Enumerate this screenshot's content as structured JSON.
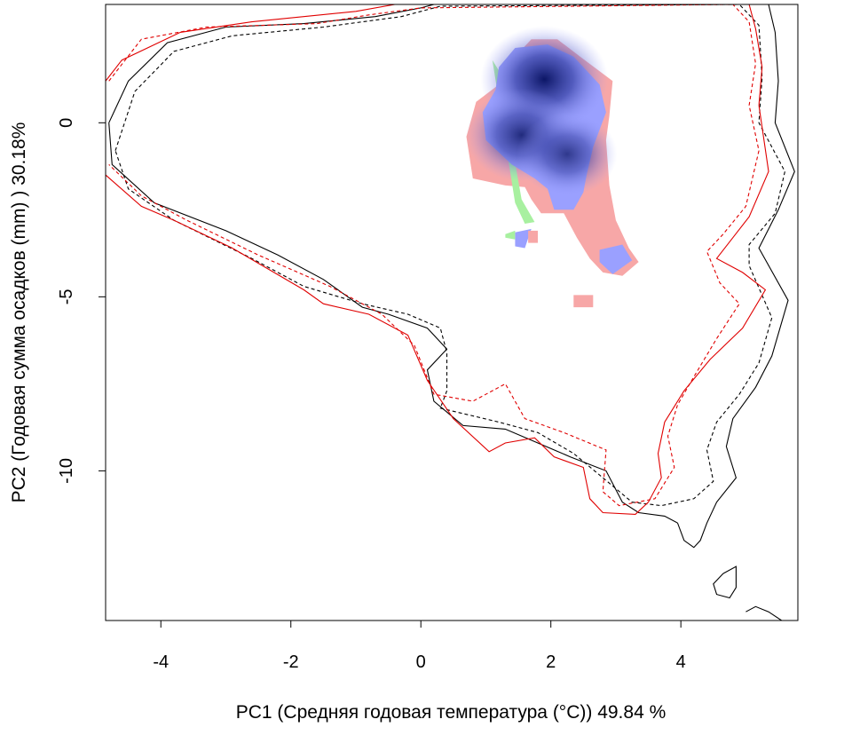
{
  "chart_data": {
    "type": "contour-density",
    "xlabel": "PC1 (Средняя годовая температура (°C)) 49.84 %",
    "ylabel": "PC2 (Годовая сумма осадков  (mm) ) 30.18%",
    "xlim": [
      -4.85,
      5.8
    ],
    "ylim": [
      -14.3,
      3.4
    ],
    "xticks": [
      -4,
      -2,
      0,
      2,
      4
    ],
    "yticks": [
      0,
      -5,
      -10
    ],
    "xtick_labels": [
      "-4",
      "-2",
      "0",
      "2",
      "4"
    ],
    "ytick_labels": [
      "0",
      "-5",
      "-10"
    ],
    "grid": false,
    "colors": {
      "black_contour": "#000000",
      "red_contour": "#e00000",
      "pink_overlap": "#f7a7a7",
      "green_overlap": "#a8f0a0",
      "blue_density": "#9aa0ff",
      "dark_density": "#101a70"
    },
    "series": [
      {
        "color": "#000000",
        "dash": "solid",
        "points": [
          [
            -4.8,
            0
          ],
          [
            -4.5,
            1.2
          ],
          [
            -3.9,
            2.3
          ],
          [
            -3,
            2.75
          ],
          [
            -1.8,
            2.85
          ],
          [
            -0.7,
            3.05
          ],
          [
            0,
            3.3
          ],
          [
            0.2,
            3.4
          ],
          [
            5.35,
            3.4
          ],
          [
            5.45,
            2.6
          ],
          [
            5.5,
            1.2
          ],
          [
            5.45,
            0
          ],
          [
            5.75,
            -1.4
          ],
          [
            5.5,
            -2.5
          ],
          [
            5.2,
            -3.6
          ],
          [
            5.65,
            -5.1
          ],
          [
            5.4,
            -6.7
          ],
          [
            5.15,
            -7.6
          ],
          [
            4.8,
            -8.5
          ],
          [
            4.7,
            -9.3
          ],
          [
            4.85,
            -10.2
          ],
          [
            4.55,
            -10.9
          ],
          [
            4.4,
            -11.5
          ],
          [
            4.3,
            -12
          ],
          [
            4.2,
            -12.2
          ],
          [
            4.05,
            -12
          ],
          [
            3.95,
            -11.5
          ],
          [
            3.75,
            -11.3
          ],
          [
            3.35,
            -11.2
          ],
          [
            3.1,
            -10.9
          ],
          [
            2.85,
            -10
          ],
          [
            2.3,
            -9.6
          ],
          [
            1.8,
            -9.2
          ],
          [
            1.3,
            -8.8
          ],
          [
            0.65,
            -8.7
          ],
          [
            0.2,
            -8
          ],
          [
            0.1,
            -7.1
          ],
          [
            0.4,
            -6.5
          ],
          [
            0.1,
            -5.9
          ],
          [
            -0.5,
            -5.5
          ],
          [
            -0.9,
            -5.3
          ],
          [
            -1.5,
            -4.5
          ],
          [
            -2.2,
            -3.8
          ],
          [
            -3,
            -3.1
          ],
          [
            -4.1,
            -2.3
          ],
          [
            -4.75,
            -1.2
          ],
          [
            -4.8,
            0
          ]
        ]
      },
      {
        "color": "#000000",
        "dash": "dashed",
        "points": [
          [
            -4.7,
            -0.8
          ],
          [
            -4.4,
            0.9
          ],
          [
            -3.8,
            2.05
          ],
          [
            -2.9,
            2.5
          ],
          [
            -1.5,
            2.75
          ],
          [
            -0.3,
            3.05
          ],
          [
            0.3,
            3.35
          ],
          [
            4.9,
            3.4
          ],
          [
            5.2,
            2.8
          ],
          [
            5.25,
            1.3
          ],
          [
            5.2,
            0
          ],
          [
            5.6,
            -1.4
          ],
          [
            5.45,
            -2.6
          ],
          [
            5.05,
            -3.5
          ],
          [
            5.05,
            -4.1
          ],
          [
            5.4,
            -5.6
          ],
          [
            5.2,
            -6.9
          ],
          [
            4.9,
            -7.8
          ],
          [
            4.55,
            -8.6
          ],
          [
            4.4,
            -9.4
          ],
          [
            4.5,
            -10.3
          ],
          [
            4.2,
            -10.8
          ],
          [
            3.7,
            -11
          ],
          [
            3.25,
            -10.9
          ],
          [
            2.8,
            -10.2
          ],
          [
            2.35,
            -9.5
          ],
          [
            1.8,
            -8.9
          ],
          [
            1.2,
            -8.6
          ],
          [
            0.3,
            -8.2
          ],
          [
            0.4,
            -7.7
          ],
          [
            0.4,
            -6.6
          ],
          [
            0.3,
            -5.9
          ],
          [
            -0.2,
            -5.5
          ],
          [
            -0.9,
            -5.2
          ],
          [
            -1.8,
            -4.7
          ],
          [
            -2.6,
            -3.9
          ],
          [
            -3.8,
            -2.8
          ],
          [
            -4.5,
            -1.9
          ],
          [
            -4.7,
            -0.8
          ]
        ]
      },
      {
        "color": "#e00000",
        "dash": "solid",
        "points": [
          [
            -4.85,
            1.2
          ],
          [
            -4.6,
            1.8
          ],
          [
            -3.7,
            2.6
          ],
          [
            -2.6,
            2.9
          ],
          [
            -1,
            3.2
          ],
          [
            -0.4,
            3.4
          ],
          [
            5.05,
            3.4
          ],
          [
            5.15,
            2.7
          ],
          [
            5.25,
            1.6
          ],
          [
            5.2,
            0.5
          ],
          [
            5.35,
            -1.4
          ],
          [
            5.05,
            -2.7
          ],
          [
            4.8,
            -3.3
          ],
          [
            4.55,
            -3.9
          ],
          [
            4.95,
            -4.3
          ],
          [
            5.3,
            -4.8
          ],
          [
            4.95,
            -5.9
          ],
          [
            4.45,
            -6.8
          ],
          [
            4.05,
            -7.7
          ],
          [
            3.75,
            -8.6
          ],
          [
            3.65,
            -9.5
          ],
          [
            3.7,
            -10.2
          ],
          [
            3.5,
            -10.9
          ],
          [
            3.3,
            -11.25
          ],
          [
            2.8,
            -11.2
          ],
          [
            2.6,
            -10.8
          ],
          [
            2.5,
            -9.9
          ],
          [
            2.05,
            -9.6
          ],
          [
            1.75,
            -9.05
          ],
          [
            1.3,
            -9.2
          ],
          [
            1.05,
            -9.45
          ],
          [
            0.5,
            -8.5
          ],
          [
            0.1,
            -7.4
          ],
          [
            -0.2,
            -6.1
          ],
          [
            -0.8,
            -5.5
          ],
          [
            -1.5,
            -5.2
          ],
          [
            -1.8,
            -4.8
          ],
          [
            -2.9,
            -3.6
          ],
          [
            -3.8,
            -2.8
          ],
          [
            -4.3,
            -2.4
          ],
          [
            -4.85,
            -1.5
          ]
        ]
      },
      {
        "color": "#e00000",
        "dash": "dashed",
        "points": [
          [
            -4.8,
            1.2
          ],
          [
            -4.3,
            2.4
          ],
          [
            -3.3,
            2.75
          ],
          [
            -1.6,
            2.85
          ],
          [
            -0.8,
            3.1
          ],
          [
            0,
            3.3
          ],
          [
            4.8,
            3.4
          ],
          [
            5.05,
            2.9
          ],
          [
            5.15,
            1.7
          ],
          [
            5.05,
            0.5
          ],
          [
            5.2,
            -0.8
          ],
          [
            5,
            -2.4
          ],
          [
            4.65,
            -3.2
          ],
          [
            4.4,
            -3.7
          ],
          [
            4.6,
            -4.6
          ],
          [
            4.9,
            -5.2
          ],
          [
            4.55,
            -6.2
          ],
          [
            4.2,
            -7.3
          ],
          [
            3.95,
            -8.1
          ],
          [
            3.8,
            -9
          ],
          [
            3.9,
            -9.9
          ],
          [
            3.6,
            -10.8
          ],
          [
            3.05,
            -11
          ],
          [
            2.8,
            -10.6
          ],
          [
            2.85,
            -9.4
          ],
          [
            2.2,
            -8.9
          ],
          [
            1.6,
            -8.5
          ],
          [
            1.3,
            -7.5
          ],
          [
            0.8,
            -8
          ],
          [
            0.2,
            -7.8
          ],
          [
            -0.1,
            -6.4
          ],
          [
            -0.6,
            -5.5
          ],
          [
            -1.4,
            -4.7
          ],
          [
            -2.5,
            -3.8
          ],
          [
            -3.6,
            -2.8
          ],
          [
            -4.3,
            -2.1
          ],
          [
            -4.8,
            -1.2
          ]
        ]
      },
      {
        "color": "#000000",
        "dash": "solid",
        "points": [
          [
            4.65,
            -12.95
          ],
          [
            4.85,
            -12.75
          ],
          [
            4.85,
            -13.35
          ],
          [
            4.75,
            -13.65
          ],
          [
            4.55,
            -13.55
          ],
          [
            4.5,
            -13.25
          ],
          [
            4.65,
            -12.95
          ]
        ]
      },
      {
        "color": "#000000",
        "dash": "solid",
        "points": [
          [
            5.0,
            -14.05
          ],
          [
            5.15,
            -13.9
          ],
          [
            5.35,
            -14.05
          ],
          [
            5.55,
            -14.3
          ]
        ]
      }
    ],
    "density": {
      "pink_region": [
        [
          1.7,
          2.4
        ],
        [
          2.1,
          2.4
        ],
        [
          2.45,
          1.9
        ],
        [
          2.95,
          1.2
        ],
        [
          2.9,
          0.2
        ],
        [
          2.85,
          -0.5
        ],
        [
          2.9,
          -1.8
        ],
        [
          3.0,
          -2.8
        ],
        [
          3.2,
          -3.6
        ],
        [
          3.35,
          -4.0
        ],
        [
          3.1,
          -4.4
        ],
        [
          2.8,
          -4.3
        ],
        [
          2.6,
          -3.9
        ],
        [
          2.4,
          -3.3
        ],
        [
          2.2,
          -2.6
        ],
        [
          1.85,
          -2.6
        ],
        [
          1.7,
          -2.2
        ],
        [
          1.6,
          -1.85
        ],
        [
          1.3,
          -1.8
        ],
        [
          0.8,
          -1.6
        ],
        [
          0.7,
          -0.4
        ],
        [
          0.85,
          0.6
        ],
        [
          1.2,
          1.1
        ],
        [
          1.4,
          1.8
        ]
      ],
      "green_region": [
        [
          1.1,
          1.8
        ],
        [
          1.2,
          1.5
        ],
        [
          1.55,
          -2.2
        ],
        [
          1.75,
          -2.85
        ],
        [
          1.6,
          -2.9
        ],
        [
          1.45,
          -2.3
        ]
      ],
      "blue_region": [
        [
          1.45,
          2.15
        ],
        [
          1.95,
          2.25
        ],
        [
          2.35,
          1.9
        ],
        [
          2.75,
          1.1
        ],
        [
          2.85,
          0.3
        ],
        [
          2.65,
          -0.7
        ],
        [
          2.55,
          -1.5
        ],
        [
          2.5,
          -2.0
        ],
        [
          2.35,
          -2.5
        ],
        [
          2.05,
          -2.5
        ],
        [
          1.95,
          -1.9
        ],
        [
          1.75,
          -1.6
        ],
        [
          1.4,
          -1.2
        ],
        [
          1.0,
          -0.5
        ],
        [
          0.95,
          0.3
        ],
        [
          1.15,
          0.95
        ],
        [
          1.2,
          1.6
        ]
      ],
      "small_patches": [
        {
          "fill": "#9aa0ff",
          "points": [
            [
              2.75,
              -3.65
            ],
            [
              3.1,
              -3.5
            ],
            [
              3.25,
              -3.95
            ],
            [
              2.95,
              -4.35
            ],
            [
              2.75,
              -4.0
            ]
          ]
        },
        {
          "fill": "#9aa0ff",
          "points": [
            [
              1.45,
              -3.15
            ],
            [
              1.7,
              -3.05
            ],
            [
              1.6,
              -3.6
            ],
            [
              1.45,
              -3.55
            ]
          ]
        },
        {
          "fill": "#a8f0a0",
          "points": [
            [
              1.3,
              -3.2
            ],
            [
              1.45,
              -3.1
            ],
            [
              1.45,
              -3.35
            ],
            [
              1.3,
              -3.3
            ]
          ]
        },
        {
          "fill": "#f7a7a7",
          "points": [
            [
              2.35,
              -4.95
            ],
            [
              2.65,
              -4.95
            ],
            [
              2.65,
              -5.3
            ],
            [
              2.35,
              -5.3
            ]
          ]
        },
        {
          "fill": "#f7a7a7",
          "points": [
            [
              1.65,
              -3.1
            ],
            [
              1.8,
              -3.1
            ],
            [
              1.8,
              -3.45
            ],
            [
              1.65,
              -3.45
            ]
          ]
        }
      ],
      "peaks": [
        {
          "x": 1.9,
          "y": 1.25,
          "intensity": 1.0
        },
        {
          "x": 1.55,
          "y": -0.35,
          "intensity": 0.85
        },
        {
          "x": 2.25,
          "y": -0.9,
          "intensity": 0.75
        }
      ]
    }
  }
}
